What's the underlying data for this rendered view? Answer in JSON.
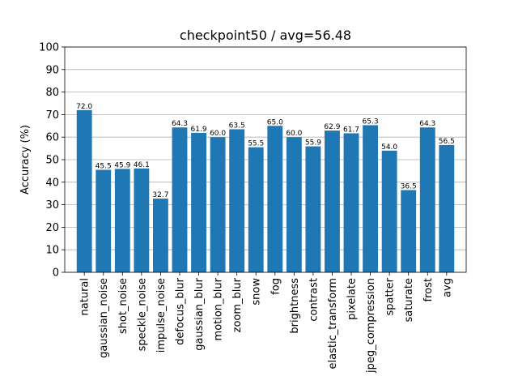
{
  "chart_data": {
    "type": "bar",
    "title": "checkpoint50 / avg=56.48",
    "xlabel": "",
    "ylabel": "Accuracy (%)",
    "ylim": [
      0,
      100
    ],
    "yticks": [
      0,
      10,
      20,
      30,
      40,
      50,
      60,
      70,
      80,
      90,
      100
    ],
    "grid": "y",
    "categories": [
      "natural",
      "gaussian_noise",
      "shot_noise",
      "speckle_noise",
      "impulse_noise",
      "defocus_blur",
      "gaussian_blur",
      "motion_blur",
      "zoom_blur",
      "snow",
      "fog",
      "brightness",
      "contrast",
      "elastic_transform",
      "pixelate",
      "jpeg_compression",
      "spatter",
      "saturate",
      "frost",
      "avg"
    ],
    "values": [
      72.0,
      45.5,
      45.9,
      46.1,
      32.7,
      64.3,
      61.9,
      60.0,
      63.5,
      55.5,
      65.0,
      60.0,
      55.9,
      62.9,
      61.7,
      65.3,
      54.0,
      36.5,
      64.3,
      56.5
    ],
    "value_labels": [
      "72.0",
      "45.5",
      "45.9",
      "46.1",
      "32.7",
      "64.3",
      "61.9",
      "60.0",
      "63.5",
      "55.5",
      "65.0",
      "60.0",
      "55.9",
      "62.9",
      "61.7",
      "65.3",
      "54.0",
      "36.5",
      "64.3",
      "56.5"
    ],
    "bar_color": "#1f77b4"
  }
}
